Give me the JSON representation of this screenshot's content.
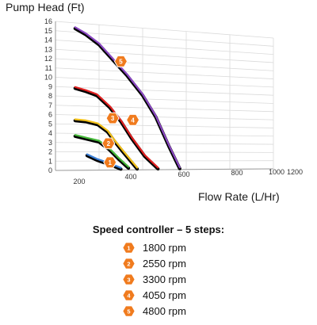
{
  "chart_data": {
    "type": "line",
    "title": "",
    "ylabel": "Pump Head (Ft)",
    "xlabel": "Flow Rate (L/Hr)",
    "ylim": [
      0,
      16
    ],
    "y_ticks": [
      "0",
      "1",
      "2",
      "3",
      "4",
      "5",
      "6",
      "7",
      "8",
      "9",
      "10",
      "11",
      "12",
      "13",
      "14",
      "15",
      "16"
    ],
    "x_ticks": [
      "200",
      "400",
      "600",
      "800",
      "1000",
      "1200"
    ],
    "grid": true,
    "series_color": "#000000",
    "series": [
      {
        "badge": "1",
        "color": "#3b7fd6",
        "points": [
          [
            145,
            1.6
          ],
          [
            190,
            1.1
          ],
          [
            250,
            0.6
          ],
          [
            300,
            0.1
          ]
        ]
      },
      {
        "badge": "2",
        "color": "#46b93a",
        "points": [
          [
            90,
            3.7
          ],
          [
            145,
            3.4
          ],
          [
            200,
            3.1
          ],
          [
            245,
            2.3
          ],
          [
            290,
            1.2
          ],
          [
            335,
            0.2
          ]
        ]
      },
      {
        "badge": "3",
        "color": "#f2c11a",
        "points": [
          [
            90,
            5.4
          ],
          [
            140,
            5.3
          ],
          [
            195,
            5.0
          ],
          [
            240,
            4.2
          ],
          [
            270,
            3.2
          ],
          [
            310,
            2.0
          ],
          [
            375,
            0.1
          ]
        ]
      },
      {
        "badge": "4",
        "color": "#e02020",
        "points": [
          [
            90,
            8.9
          ],
          [
            140,
            8.6
          ],
          [
            190,
            8.2
          ],
          [
            250,
            6.9
          ],
          [
            300,
            5.4
          ],
          [
            350,
            3.5
          ],
          [
            410,
            1.5
          ],
          [
            470,
            0.1
          ]
        ]
      },
      {
        "badge": "5",
        "color": "#8b48c4",
        "points": [
          [
            90,
            15.4
          ],
          [
            140,
            14.8
          ],
          [
            200,
            13.8
          ],
          [
            260,
            12.3
          ],
          [
            330,
            10.5
          ],
          [
            400,
            8.4
          ],
          [
            460,
            6.0
          ],
          [
            520,
            2.7
          ],
          [
            570,
            0.1
          ]
        ]
      }
    ],
    "badges": [
      {
        "label": "1",
        "x": 250,
        "y": 0.85
      },
      {
        "label": "2",
        "x": 243,
        "y": 2.95
      },
      {
        "label": "3",
        "x": 262,
        "y": 5.75
      },
      {
        "label": "4",
        "x": 355,
        "y": 5.6
      },
      {
        "label": "5",
        "x": 300,
        "y": 12.1
      }
    ]
  },
  "legend": {
    "title": "Speed controller – 5 steps:",
    "badge_color": "#f07b1e",
    "items": [
      {
        "num": "1",
        "label": "1800 rpm"
      },
      {
        "num": "2",
        "label": "2550 rpm"
      },
      {
        "num": "3",
        "label": "3300 rpm"
      },
      {
        "num": "4",
        "label": "4050 rpm"
      },
      {
        "num": "5",
        "label": "4800 rpm"
      }
    ]
  }
}
